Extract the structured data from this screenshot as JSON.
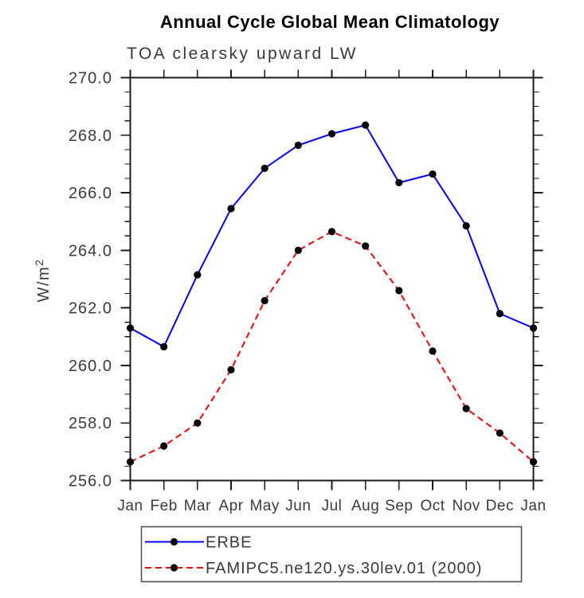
{
  "window": {
    "background": "#ffffff"
  },
  "chart_data": {
    "type": "line",
    "title": "Annual Cycle Global Mean Climatology",
    "subtitle": "TOA clearsky upward LW",
    "ylabel": "W/m²",
    "ylabel_base": "W/m",
    "ylabel_sup": "2",
    "categories": [
      "Jan",
      "Feb",
      "Mar",
      "Apr",
      "May",
      "Jun",
      "Jul",
      "Aug",
      "Sep",
      "Oct",
      "Nov",
      "Dec",
      "Jan"
    ],
    "series": [
      {
        "name": "ERBE",
        "color": "#0000ff",
        "line_style": "solid",
        "marker": "circle",
        "marker_color": "#000000",
        "values": [
          261.3,
          260.65,
          263.15,
          265.45,
          266.85,
          267.65,
          268.05,
          268.35,
          266.35,
          266.65,
          264.85,
          261.8,
          261.3
        ]
      },
      {
        "name": "FAMIPC5.ne120.ys.30lev.01 (2000)",
        "color": "#ff0000",
        "line_style": "dashed",
        "marker": "circle",
        "marker_color": "#000000",
        "values": [
          256.65,
          257.2,
          258.0,
          259.85,
          262.25,
          264.0,
          264.65,
          264.15,
          262.6,
          260.5,
          258.5,
          257.65,
          256.65
        ]
      }
    ],
    "ylim": [
      256.0,
      270.0
    ],
    "ytick_step": 2.0,
    "ytick_minor_step": 0.5,
    "ytick_labels": [
      "256.0",
      "258.0",
      "260.0",
      "262.0",
      "264.0",
      "266.0",
      "268.0",
      "270.0"
    ],
    "grid": false,
    "legend_position": "bottom-center",
    "axis_color": "#1a1a1a",
    "label_color": "#3a3a3a"
  }
}
